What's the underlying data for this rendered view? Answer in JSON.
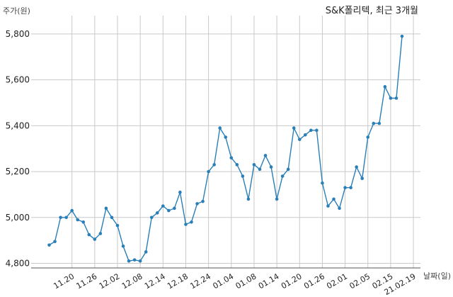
{
  "chart_data": {
    "type": "line",
    "title": "S&K폴리텍, 최근 3개월",
    "ylabel": "주가(원)",
    "xlabel": "날짜(일)",
    "ylim": [
      4780,
      5880
    ],
    "yticks": [
      4800,
      5000,
      5200,
      5400,
      5600,
      5800
    ],
    "ytick_labels": [
      "4,800",
      "5,000",
      "5,200",
      "5,400",
      "5,600",
      "5,800"
    ],
    "xtick_labels": [
      "11.20",
      "11.26",
      "12.02",
      "12.08",
      "12.14",
      "12.18",
      "12.24",
      "01.04",
      "01.08",
      "01.14",
      "01.20",
      "01.26",
      "02.01",
      "02.05",
      "02.15",
      "21.02.19"
    ],
    "xtick_index": [
      4,
      8,
      12,
      16,
      20,
      24,
      28,
      32,
      36,
      40,
      44,
      48,
      52,
      56,
      60,
      64
    ],
    "grid": true,
    "color": "#2a7fb8",
    "series": [
      {
        "values": [
          4880,
          4895,
          5000,
          5000,
          5030,
          4990,
          4980,
          4925,
          4905,
          4930,
          5040,
          5000,
          4965,
          4875,
          4810,
          4815,
          4810,
          4850,
          5000,
          5020,
          5050,
          5030,
          5040,
          5110,
          4970,
          4980,
          5060,
          5070,
          5200,
          5230,
          5390,
          5350,
          5260,
          5230,
          5180,
          5080,
          5230,
          5210,
          5270,
          5220,
          5080,
          5180,
          5210,
          5390,
          5340,
          5360,
          5380,
          5380,
          5150,
          5050,
          5080,
          5040,
          5130,
          5130,
          5220,
          5170,
          5350,
          5410,
          5410,
          5570,
          5520,
          5520,
          5790
        ]
      }
    ]
  }
}
